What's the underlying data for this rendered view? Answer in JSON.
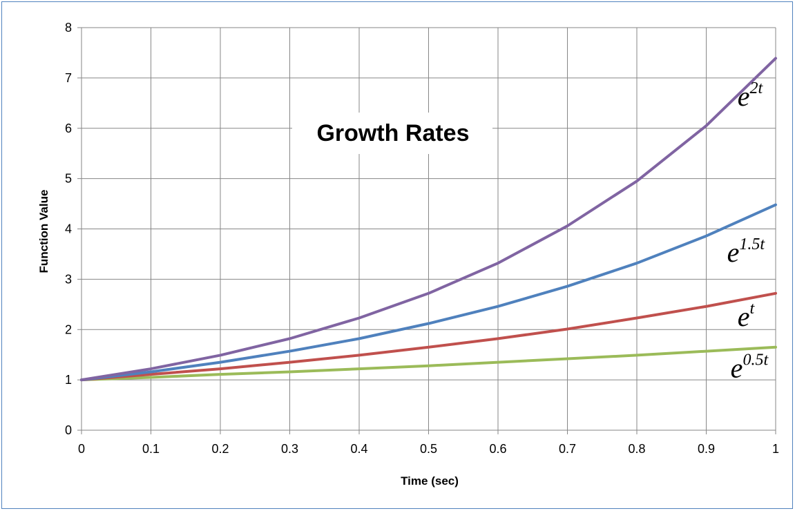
{
  "chart_data": {
    "type": "line",
    "title": "Growth Rates",
    "xlabel": "Time (sec)",
    "ylabel": "Function Value",
    "xlim": [
      0,
      1
    ],
    "ylim": [
      0,
      8
    ],
    "grid": true,
    "legend": "inline labels at right end of each line",
    "x": [
      0,
      0.1,
      0.2,
      0.3,
      0.4,
      0.5,
      0.6,
      0.7,
      0.8,
      0.9,
      1
    ],
    "x_ticks": [
      "0",
      "0.1",
      "0.2",
      "0.3",
      "0.4",
      "0.5",
      "0.6",
      "0.7",
      "0.8",
      "0.9",
      "1"
    ],
    "y_ticks": [
      "0",
      "1",
      "2",
      "3",
      "4",
      "5",
      "6",
      "7",
      "8"
    ],
    "series": [
      {
        "label_base": "e",
        "label_exp": "2t",
        "color": "#8064a2",
        "values": [
          1.0,
          1.22,
          1.49,
          1.82,
          2.23,
          2.72,
          3.32,
          4.06,
          4.95,
          6.05,
          7.39
        ]
      },
      {
        "label_base": "e",
        "label_exp": "1.5t",
        "color": "#4f81bd",
        "values": [
          1.0,
          1.16,
          1.35,
          1.57,
          1.82,
          2.12,
          2.46,
          2.86,
          3.32,
          3.86,
          4.48
        ]
      },
      {
        "label_base": "e",
        "label_exp": "t",
        "color": "#c0504d",
        "values": [
          1.0,
          1.11,
          1.22,
          1.35,
          1.49,
          1.65,
          1.82,
          2.01,
          2.23,
          2.46,
          2.72
        ]
      },
      {
        "label_base": "e",
        "label_exp": "0.5t",
        "color": "#9bbb59",
        "values": [
          1.0,
          1.05,
          1.11,
          1.16,
          1.22,
          1.28,
          1.35,
          1.42,
          1.49,
          1.57,
          1.65
        ]
      }
    ]
  }
}
